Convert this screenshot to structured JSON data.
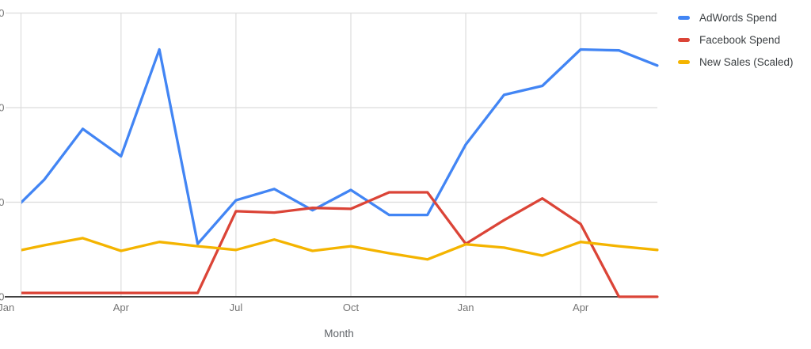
{
  "legend": {
    "items": [
      {
        "label": "AdWords Spend",
        "color": "#4285F4"
      },
      {
        "label": "Facebook Spend",
        "color": "#DB4437"
      },
      {
        "label": "New Sales (Scaled)",
        "color": "#F4B400"
      }
    ]
  },
  "axes": {
    "x_title": "Month",
    "x_tick_labels": [
      "Jan",
      "Apr",
      "Jul",
      "Oct",
      "Jan",
      "Apr"
    ],
    "x_tick_month_index": [
      0,
      3,
      6,
      9,
      12,
      15
    ],
    "y_axis": {
      "tick_fragments": [
        "0",
        "0",
        "0",
        "0"
      ],
      "labels_cropped": true
    }
  },
  "colors": {
    "gridline": "#dcdcdc",
    "axis_line": "#424242",
    "tick_label": "#757575"
  },
  "chart_data": {
    "type": "line",
    "x": [
      "Jan",
      "Feb",
      "Mar",
      "Apr",
      "May",
      "Jun",
      "Jul",
      "Aug",
      "Sep",
      "Oct",
      "Nov",
      "Dec",
      "Jan",
      "Feb",
      "Mar",
      "Apr",
      "May",
      "Jun"
    ],
    "series": [
      {
        "name": "AdWords Spend",
        "color": "#4285F4",
        "values": [
          840,
          1240,
          1775,
          1485,
          2615,
          560,
          1020,
          1140,
          915,
          1130,
          865,
          865,
          1610,
          2135,
          2230,
          2615,
          2605,
          2445
        ]
      },
      {
        "name": "Facebook Spend",
        "color": "#DB4437",
        "values": [
          40,
          40,
          40,
          40,
          40,
          40,
          905,
          890,
          940,
          930,
          1105,
          1105,
          560,
          810,
          1040,
          770,
          0,
          0
        ]
      },
      {
        "name": "New Sales (Scaled)",
        "color": "#F4B400",
        "values": [
          460,
          545,
          620,
          485,
          580,
          535,
          495,
          605,
          485,
          535,
          460,
          395,
          555,
          520,
          435,
          580,
          535,
          495
        ]
      }
    ],
    "title": "",
    "xlabel": "Month",
    "ylabel": "",
    "ylim": [
      0,
      3000
    ],
    "gridline_step": 1000,
    "legend_position": "right",
    "note": "y-axis tick labels are cropped at the left edge of the screenshot; values estimated assuming gridlines at 0/1000/2000/3000"
  }
}
